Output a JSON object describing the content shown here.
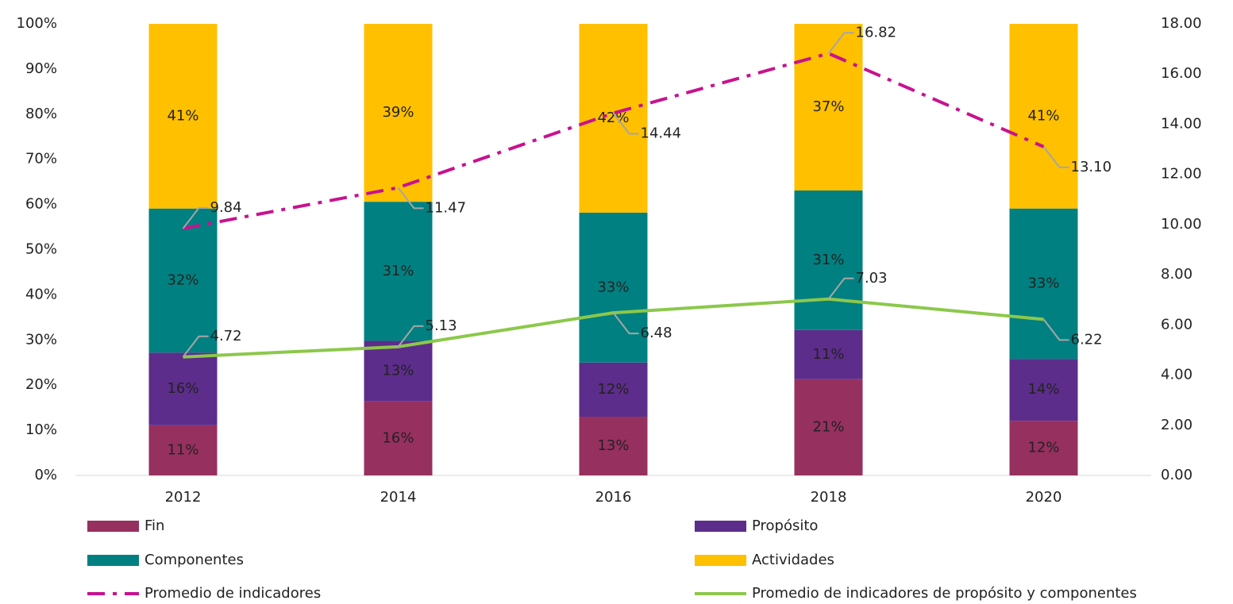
{
  "chart_data": {
    "type": "bar",
    "categories": [
      "2012",
      "2014",
      "2016",
      "2018",
      "2020"
    ],
    "series": [
      {
        "name": "Fin",
        "color": "#96305f",
        "values": [
          11.1,
          16.4,
          13.0,
          21.3,
          12.1
        ],
        "value_labels": [
          "11%",
          "16%",
          "13%",
          "21%",
          "12%"
        ]
      },
      {
        "name": "Propósito",
        "color": "#5c2d8a",
        "values": [
          16.1,
          13.4,
          12.0,
          10.9,
          13.7
        ],
        "value_labels": [
          "16%",
          "13%",
          "12%",
          "11%",
          "14%"
        ]
      },
      {
        "name": "Componentes",
        "color": "#008080",
        "values": [
          31.9,
          30.8,
          33.2,
          30.9,
          33.3
        ],
        "value_labels": [
          "32%",
          "31%",
          "33%",
          "31%",
          "33%"
        ]
      },
      {
        "name": "Actividades",
        "color": "#ffc000",
        "values": [
          40.9,
          39.4,
          41.8,
          36.9,
          40.9
        ],
        "value_labels": [
          "41%",
          "39%",
          "42%",
          "37%",
          "41%"
        ]
      },
      {
        "name": "Promedio de indicadores",
        "type": "line",
        "axis": "y2",
        "color": "#c8128f",
        "dash": "dashdot",
        "values": [
          9.84,
          11.47,
          14.44,
          16.82,
          13.1
        ],
        "value_labels": [
          "9.84",
          "11.47",
          "14.44",
          "16.82",
          "13.10"
        ]
      },
      {
        "name": "Promedio de indicadores de propósito y componentes",
        "type": "line",
        "axis": "y2",
        "color": "#8cc84b",
        "values": [
          4.72,
          5.13,
          6.48,
          7.03,
          6.22
        ],
        "value_labels": [
          "4.72",
          "5.13",
          "6.48",
          "7.03",
          "6.22"
        ]
      }
    ],
    "stacked": true,
    "ylim": [
      0,
      100
    ],
    "yticks": [
      {
        "value": 0,
        "label": "0%"
      },
      {
        "value": 10,
        "label": "10%"
      },
      {
        "value": 20,
        "label": "20%"
      },
      {
        "value": 30,
        "label": "30%"
      },
      {
        "value": 40,
        "label": "40%"
      },
      {
        "value": 50,
        "label": "50%"
      },
      {
        "value": 60,
        "label": "60%"
      },
      {
        "value": 70,
        "label": "70%"
      },
      {
        "value": 80,
        "label": "80%"
      },
      {
        "value": 90,
        "label": "90%"
      },
      {
        "value": 100,
        "label": "100%"
      }
    ],
    "y2lim": [
      0,
      18
    ],
    "y2ticks": [
      {
        "value": 0,
        "label": "0.00"
      },
      {
        "value": 2,
        "label": "2.00"
      },
      {
        "value": 4,
        "label": "4.00"
      },
      {
        "value": 6,
        "label": "6.00"
      },
      {
        "value": 8,
        "label": "8.00"
      },
      {
        "value": 10,
        "label": "10.00"
      },
      {
        "value": 12,
        "label": "12.00"
      },
      {
        "value": 14,
        "label": "14.00"
      },
      {
        "value": 16,
        "label": "16.00"
      },
      {
        "value": 18,
        "label": "18.00"
      }
    ],
    "legend": "bottom"
  }
}
